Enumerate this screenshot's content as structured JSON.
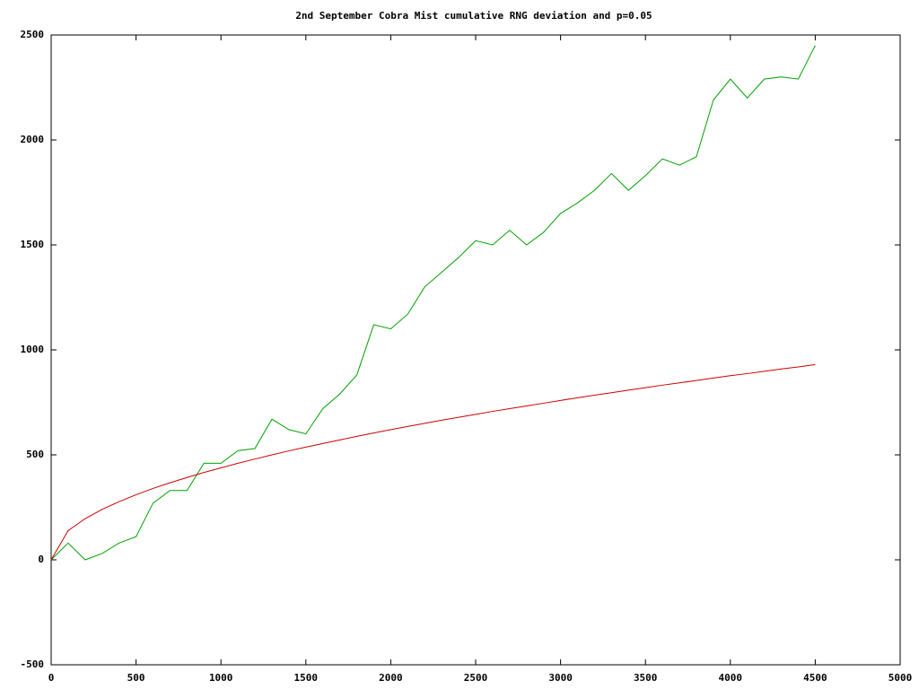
{
  "chart_data": {
    "type": "line",
    "title": "2nd September Cobra Mist cumulative RNG deviation and p=0.05",
    "x": [
      0,
      100,
      200,
      300,
      400,
      500,
      600,
      700,
      800,
      900,
      1000,
      1100,
      1200,
      1300,
      1400,
      1500,
      1600,
      1700,
      1800,
      1900,
      2000,
      2100,
      2200,
      2300,
      2400,
      2500,
      2600,
      2700,
      2800,
      2900,
      3000,
      3100,
      3200,
      3300,
      3400,
      3500,
      3600,
      3700,
      3800,
      3900,
      4000,
      4100,
      4200,
      4300,
      4400,
      4500
    ],
    "series": [
      {
        "color": "#00a000",
        "values": [
          0,
          80,
          0,
          30,
          80,
          110,
          270,
          330,
          330,
          460,
          460,
          520,
          530,
          670,
          620,
          600,
          720,
          790,
          880,
          1120,
          1100,
          1170,
          1300,
          1370,
          1440,
          1520,
          1500,
          1570,
          1500,
          1560,
          1650,
          1700,
          1760,
          1840,
          1760,
          1830,
          1910,
          1880,
          1920,
          2190,
          2290,
          2200,
          2290,
          2300,
          2290,
          2450
        ]
      },
      {
        "color": "#cc0000",
        "values": [
          0,
          139,
          196,
          240,
          277,
          310,
          340,
          367,
          392,
          416,
          438,
          460,
          480,
          500,
          519,
          537,
          554,
          571,
          588,
          604,
          620,
          635,
          650,
          665,
          679,
          693,
          707,
          720,
          733,
          746,
          759,
          772,
          784,
          796,
          808,
          820,
          832,
          843,
          854,
          866,
          877,
          887,
          898,
          909,
          919,
          930
        ]
      }
    ],
    "xlim": [
      0,
      5000
    ],
    "ylim": [
      -500,
      2500
    ],
    "xticks": [
      0,
      500,
      1000,
      1500,
      2000,
      2500,
      3000,
      3500,
      4000,
      4500,
      5000
    ],
    "yticks": [
      -500,
      0,
      500,
      1000,
      1500,
      2000,
      2500
    ],
    "grid": false
  }
}
